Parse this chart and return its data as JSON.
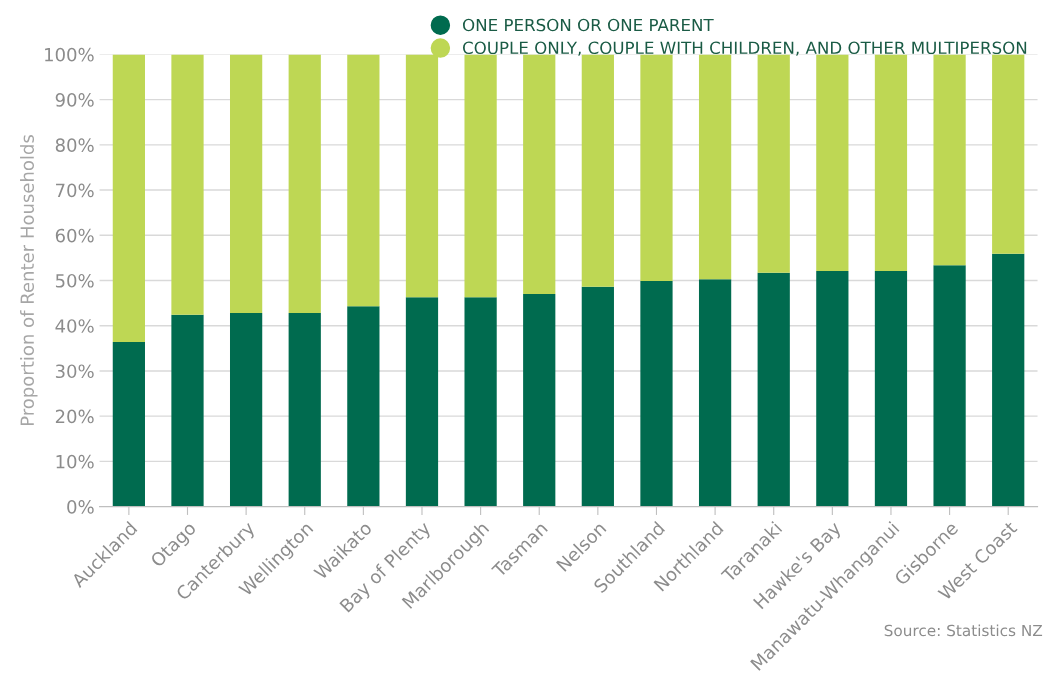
{
  "chart_data": {
    "type": "bar",
    "stacked": true,
    "ylabel": "Proportion of Renter Households",
    "categories": [
      "Auckland",
      "Otago",
      "Canterbury",
      "Wellington",
      "Waikato",
      "Bay of Plenty",
      "Marlborough",
      "Tasman",
      "Nelson",
      "Southland",
      "Northland",
      "Taranaki",
      "Hawke's Bay",
      "Manawatu-Whanganui",
      "Gisborne",
      "West Coast"
    ],
    "series": [
      {
        "name": "ONE PERSON OR ONE PARENT",
        "color": "#006b4f",
        "values": [
          36.4,
          42.4,
          42.8,
          42.8,
          44.3,
          46.3,
          46.3,
          47.0,
          48.6,
          49.9,
          50.3,
          51.7,
          52.1,
          52.1,
          53.4,
          55.9
        ]
      },
      {
        "name": "COUPLE ONLY, COUPLE WITH CHILDREN, AND OTHER MULTIPERSON",
        "color": "#bed754",
        "values": [
          63.6,
          57.6,
          57.2,
          57.2,
          55.7,
          53.7,
          53.7,
          53.0,
          51.4,
          50.1,
          49.7,
          48.3,
          47.9,
          47.9,
          46.6,
          44.1
        ]
      }
    ],
    "ylim": [
      0,
      100
    ],
    "yticks": [
      {
        "value": 0,
        "label": "0%"
      },
      {
        "value": 10,
        "label": "10%"
      },
      {
        "value": 20,
        "label": "20%"
      },
      {
        "value": 30,
        "label": "30%"
      },
      {
        "value": 40,
        "label": "40%"
      },
      {
        "value": 50,
        "label": "50%"
      },
      {
        "value": 60,
        "label": "60%"
      },
      {
        "value": 70,
        "label": "70%"
      },
      {
        "value": 80,
        "label": "80%"
      },
      {
        "value": 90,
        "label": "90%"
      },
      {
        "value": 100,
        "label": "100%"
      }
    ],
    "grid": "y",
    "legend": "top",
    "annotations": [
      "Source: Statistics NZ"
    ]
  }
}
